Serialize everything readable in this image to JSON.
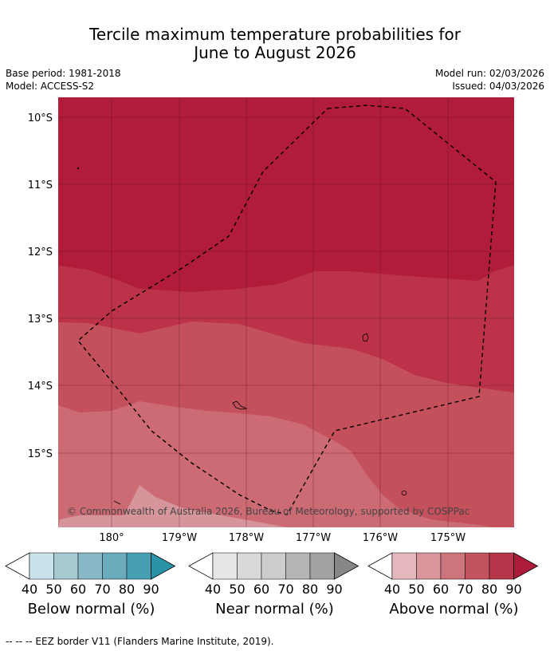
{
  "title": {
    "line1": "Tercile maximum temperature probabilities for",
    "line2": "June to August 2026"
  },
  "meta": {
    "base_period": "Base period: 1981-2018",
    "model": "Model: ACCESS-S2",
    "model_run": "Model run: 02/03/2026",
    "issued": "Issued: 04/03/2026"
  },
  "map": {
    "lat_labels": [
      "10°S",
      "11°S",
      "12°S",
      "13°S",
      "14°S",
      "15°S"
    ],
    "lon_labels": [
      "180°",
      "179°W",
      "178°W",
      "177°W",
      "176°W",
      "175°W"
    ],
    "copyright": "© Commonwealth of Australia 2026, Bureau of Meteorology, supported by COSPPac",
    "colors": {
      "above_90": "#b01c3a",
      "above_80": "#bc3349",
      "above_70": "#c4505c",
      "above_60": "#cc6b74",
      "above_50": "#d6959b"
    }
  },
  "colorbars": [
    {
      "title": "Below normal (%)",
      "ticks": [
        "40",
        "50",
        "60",
        "70",
        "80",
        "90"
      ],
      "colors": [
        "#ffffff",
        "#cae2ea",
        "#a6c8d0",
        "#88b8c5",
        "#6aabbc",
        "#479fb2",
        "#2a93a8"
      ]
    },
    {
      "title": "Near normal (%)",
      "ticks": [
        "40",
        "50",
        "60",
        "70",
        "80",
        "90"
      ],
      "colors": [
        "#ffffff",
        "#e6e6e6",
        "#d9d9d9",
        "#cccccc",
        "#b5b5b5",
        "#a2a2a2",
        "#878787"
      ]
    },
    {
      "title": "Above normal (%)",
      "ticks": [
        "40",
        "50",
        "60",
        "70",
        "80",
        "90"
      ],
      "colors": [
        "#ffffff",
        "#e5b8bd",
        "#d9959c",
        "#cd757d",
        "#c2525e",
        "#b7354a",
        "#ad1b3b"
      ]
    }
  ],
  "footer": "-- -- -- EEZ border V11 (Flanders Marine Institute, 2019)."
}
